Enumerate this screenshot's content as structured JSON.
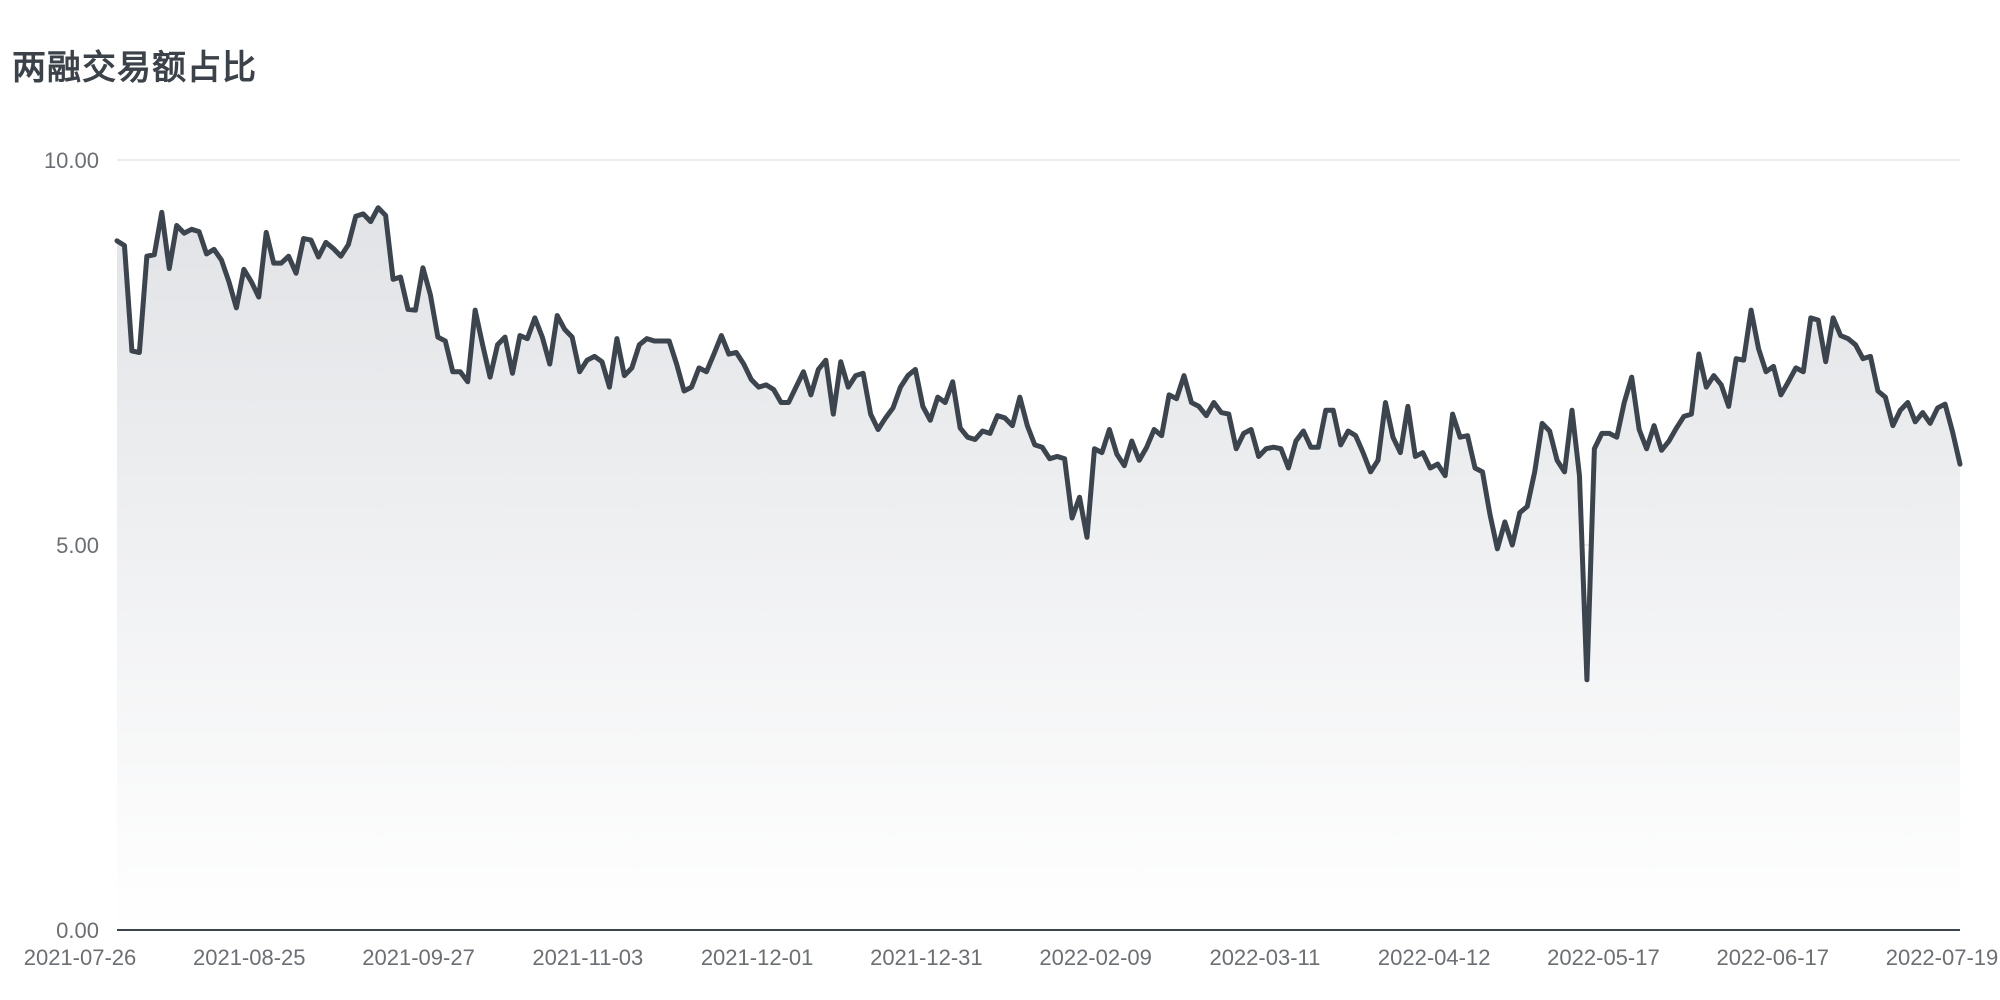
{
  "chart_data": {
    "type": "area",
    "title": "两融交易额占比",
    "xlabel": "",
    "ylabel": "",
    "ylim": [
      0,
      10
    ],
    "y_ticks": [
      "0.00",
      "5.00",
      "10.00"
    ],
    "x_ticks": [
      "2021-07-26",
      "2021-08-25",
      "2021-09-27",
      "2021-11-03",
      "2021-12-01",
      "2021-12-31",
      "2022-02-09",
      "2022-03-11",
      "2022-04-12",
      "2022-05-17",
      "2022-06-17",
      "2022-07-19"
    ],
    "grid": true,
    "legend": "none",
    "colors": {
      "line": "#3c444d",
      "fill_top": "#e1e3e6",
      "fill_bottom": "#ffffff",
      "grid": "#e3e5e8",
      "axis": "#3c444d"
    },
    "series": [
      {
        "values": [
          8.95,
          8.89,
          7.52,
          7.5,
          8.75,
          8.77,
          9.32,
          8.59,
          9.15,
          9.05,
          9.1,
          9.07,
          8.78,
          8.84,
          8.7,
          8.42,
          8.08,
          8.58,
          8.42,
          8.22,
          9.06,
          8.66,
          8.66,
          8.75,
          8.53,
          8.98,
          8.96,
          8.74,
          8.93,
          8.85,
          8.75,
          8.9,
          9.27,
          9.3,
          9.2,
          9.38,
          9.28,
          8.45,
          8.48,
          8.06,
          8.05,
          8.6,
          8.25,
          7.7,
          7.65,
          7.25,
          7.25,
          7.12,
          8.05,
          7.6,
          7.18,
          7.6,
          7.7,
          7.23,
          7.72,
          7.68,
          7.95,
          7.7,
          7.35,
          7.98,
          7.8,
          7.7,
          7.25,
          7.4,
          7.45,
          7.38,
          7.05,
          7.68,
          7.2,
          7.3,
          7.6,
          7.68,
          7.65,
          7.65,
          7.65,
          7.35,
          7.0,
          7.05,
          7.3,
          7.25,
          7.48,
          7.72,
          7.48,
          7.5,
          7.35,
          7.15,
          7.05,
          7.08,
          7.02,
          6.85,
          6.85,
          7.05,
          7.25,
          6.95,
          7.28,
          7.4,
          6.7,
          7.38,
          7.05,
          7.2,
          7.23,
          6.7,
          6.5,
          6.65,
          6.78,
          7.05,
          7.2,
          7.28,
          6.8,
          6.62,
          6.92,
          6.85,
          7.12,
          6.52,
          6.4,
          6.37,
          6.48,
          6.45,
          6.68,
          6.65,
          6.55,
          6.92,
          6.55,
          6.3,
          6.27,
          6.12,
          6.15,
          6.12,
          5.35,
          5.62,
          5.1,
          6.25,
          6.2,
          6.5,
          6.18,
          6.03,
          6.35,
          6.1,
          6.27,
          6.5,
          6.42,
          6.95,
          6.9,
          7.2,
          6.85,
          6.8,
          6.68,
          6.85,
          6.72,
          6.7,
          6.25,
          6.45,
          6.5,
          6.15,
          6.25,
          6.27,
          6.25,
          6.0,
          6.35,
          6.48,
          6.27,
          6.27,
          6.75,
          6.75,
          6.3,
          6.48,
          6.42,
          6.2,
          5.95,
          6.1,
          6.85,
          6.4,
          6.2,
          6.8,
          6.15,
          6.2,
          6.0,
          6.05,
          5.9,
          6.7,
          6.4,
          6.42,
          6.0,
          5.95,
          5.4,
          4.95,
          5.3,
          5.0,
          5.42,
          5.5,
          5.95,
          6.58,
          6.48,
          6.1,
          5.95,
          6.75,
          5.9,
          3.25,
          6.25,
          6.45,
          6.45,
          6.4,
          6.85,
          7.18,
          6.5,
          6.25,
          6.55,
          6.23,
          6.35,
          6.52,
          6.67,
          6.7,
          7.48,
          7.05,
          7.2,
          7.08,
          6.8,
          7.42,
          7.4,
          8.05,
          7.55,
          7.25,
          7.32,
          6.95,
          7.12,
          7.3,
          7.25,
          7.95,
          7.92,
          7.38,
          7.95,
          7.72,
          7.68,
          7.6,
          7.42,
          7.45,
          7.0,
          6.92,
          6.55,
          6.75,
          6.85,
          6.6,
          6.72,
          6.58,
          6.78,
          6.83,
          6.47,
          6.05
        ]
      }
    ]
  }
}
